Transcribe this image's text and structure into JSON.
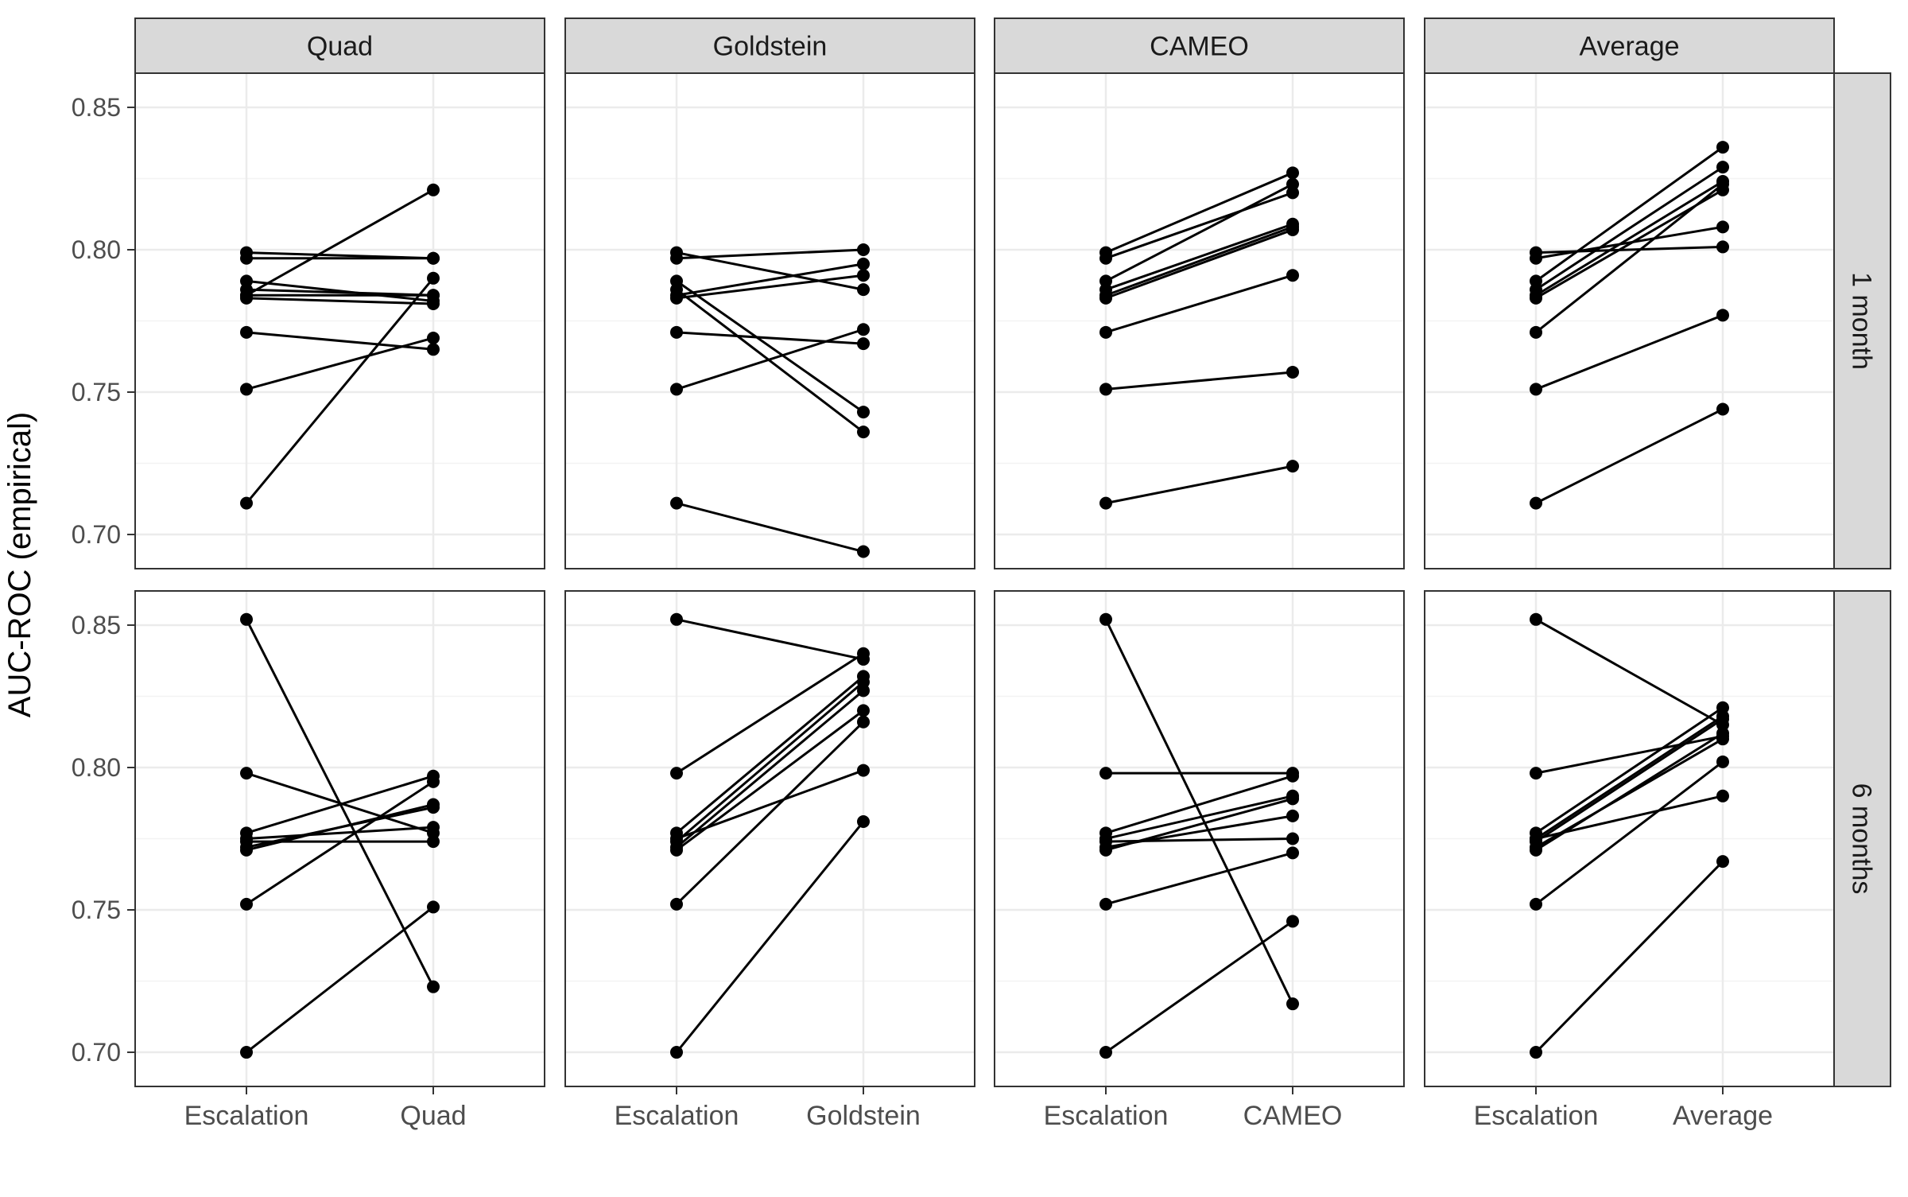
{
  "chart_data": {
    "type": "line",
    "ylabel": "AUC-ROC (empirical)",
    "ylim": [
      0.688,
      0.862
    ],
    "yticks": [
      0.7,
      0.75,
      0.8,
      0.85
    ],
    "ytick_labels": [
      "0.70",
      "0.75",
      "0.80",
      "0.85"
    ],
    "grid": true,
    "columns": [
      "Quad",
      "Goldstein",
      "CAMEO",
      "Average"
    ],
    "rows": [
      "1 month",
      "6 months"
    ],
    "panels": [
      {
        "column": "Quad",
        "row": "1 month",
        "categories": [
          "Escalation",
          "Quad"
        ],
        "pairs": [
          [
            0.799,
            0.797
          ],
          [
            0.797,
            0.797
          ],
          [
            0.789,
            0.782
          ],
          [
            0.786,
            0.784
          ],
          [
            0.784,
            0.784
          ],
          [
            0.783,
            0.781
          ],
          [
            0.771,
            0.765
          ],
          [
            0.751,
            0.769
          ],
          [
            0.711,
            0.79
          ],
          [
            0.784,
            0.821
          ]
        ]
      },
      {
        "column": "Goldstein",
        "row": "1 month",
        "categories": [
          "Escalation",
          "Goldstein"
        ],
        "pairs": [
          [
            0.799,
            0.786
          ],
          [
            0.797,
            0.8
          ],
          [
            0.789,
            0.743
          ],
          [
            0.786,
            0.736
          ],
          [
            0.784,
            0.795
          ],
          [
            0.783,
            0.791
          ],
          [
            0.771,
            0.767
          ],
          [
            0.751,
            0.772
          ],
          [
            0.711,
            0.694
          ]
        ]
      },
      {
        "column": "CAMEO",
        "row": "1 month",
        "categories": [
          "Escalation",
          "CAMEO"
        ],
        "pairs": [
          [
            0.799,
            0.827
          ],
          [
            0.797,
            0.82
          ],
          [
            0.789,
            0.823
          ],
          [
            0.786,
            0.809
          ],
          [
            0.784,
            0.808
          ],
          [
            0.783,
            0.807
          ],
          [
            0.771,
            0.791
          ],
          [
            0.751,
            0.757
          ],
          [
            0.711,
            0.724
          ]
        ]
      },
      {
        "column": "Average",
        "row": "1 month",
        "categories": [
          "Escalation",
          "Average"
        ],
        "pairs": [
          [
            0.799,
            0.801
          ],
          [
            0.797,
            0.808
          ],
          [
            0.789,
            0.836
          ],
          [
            0.786,
            0.829
          ],
          [
            0.784,
            0.824
          ],
          [
            0.783,
            0.821
          ],
          [
            0.771,
            0.823
          ],
          [
            0.751,
            0.777
          ],
          [
            0.711,
            0.744
          ]
        ]
      },
      {
        "column": "Quad",
        "row": "6 months",
        "categories": [
          "Escalation",
          "Quad"
        ],
        "pairs": [
          [
            0.852,
            0.723
          ],
          [
            0.798,
            0.777
          ],
          [
            0.777,
            0.797
          ],
          [
            0.775,
            0.779
          ],
          [
            0.774,
            0.774
          ],
          [
            0.772,
            0.786
          ],
          [
            0.771,
            0.787
          ],
          [
            0.752,
            0.795
          ],
          [
            0.7,
            0.751
          ]
        ]
      },
      {
        "column": "Goldstein",
        "row": "6 months",
        "categories": [
          "Escalation",
          "Goldstein"
        ],
        "pairs": [
          [
            0.852,
            0.838
          ],
          [
            0.798,
            0.84
          ],
          [
            0.777,
            0.832
          ],
          [
            0.775,
            0.799
          ],
          [
            0.774,
            0.83
          ],
          [
            0.772,
            0.827
          ],
          [
            0.771,
            0.82
          ],
          [
            0.752,
            0.816
          ],
          [
            0.7,
            0.781
          ]
        ]
      },
      {
        "column": "CAMEO",
        "row": "6 months",
        "categories": [
          "Escalation",
          "CAMEO"
        ],
        "pairs": [
          [
            0.852,
            0.717
          ],
          [
            0.798,
            0.798
          ],
          [
            0.777,
            0.797
          ],
          [
            0.775,
            0.79
          ],
          [
            0.774,
            0.775
          ],
          [
            0.772,
            0.783
          ],
          [
            0.771,
            0.789
          ],
          [
            0.752,
            0.77
          ],
          [
            0.7,
            0.746
          ]
        ]
      },
      {
        "column": "Average",
        "row": "6 months",
        "categories": [
          "Escalation",
          "Average"
        ],
        "pairs": [
          [
            0.852,
            0.815
          ],
          [
            0.798,
            0.811
          ],
          [
            0.777,
            0.821
          ],
          [
            0.775,
            0.818
          ],
          [
            0.774,
            0.817
          ],
          [
            0.772,
            0.81
          ],
          [
            0.771,
            0.812
          ],
          [
            0.752,
            0.802
          ],
          [
            0.7,
            0.767
          ]
        ]
      },
      {
        "column": "Average",
        "row": "6 months",
        "categories": [
          "Escalation",
          "Average"
        ],
        "pairs": [
          [
            0.775,
            0.79
          ]
        ]
      }
    ]
  }
}
